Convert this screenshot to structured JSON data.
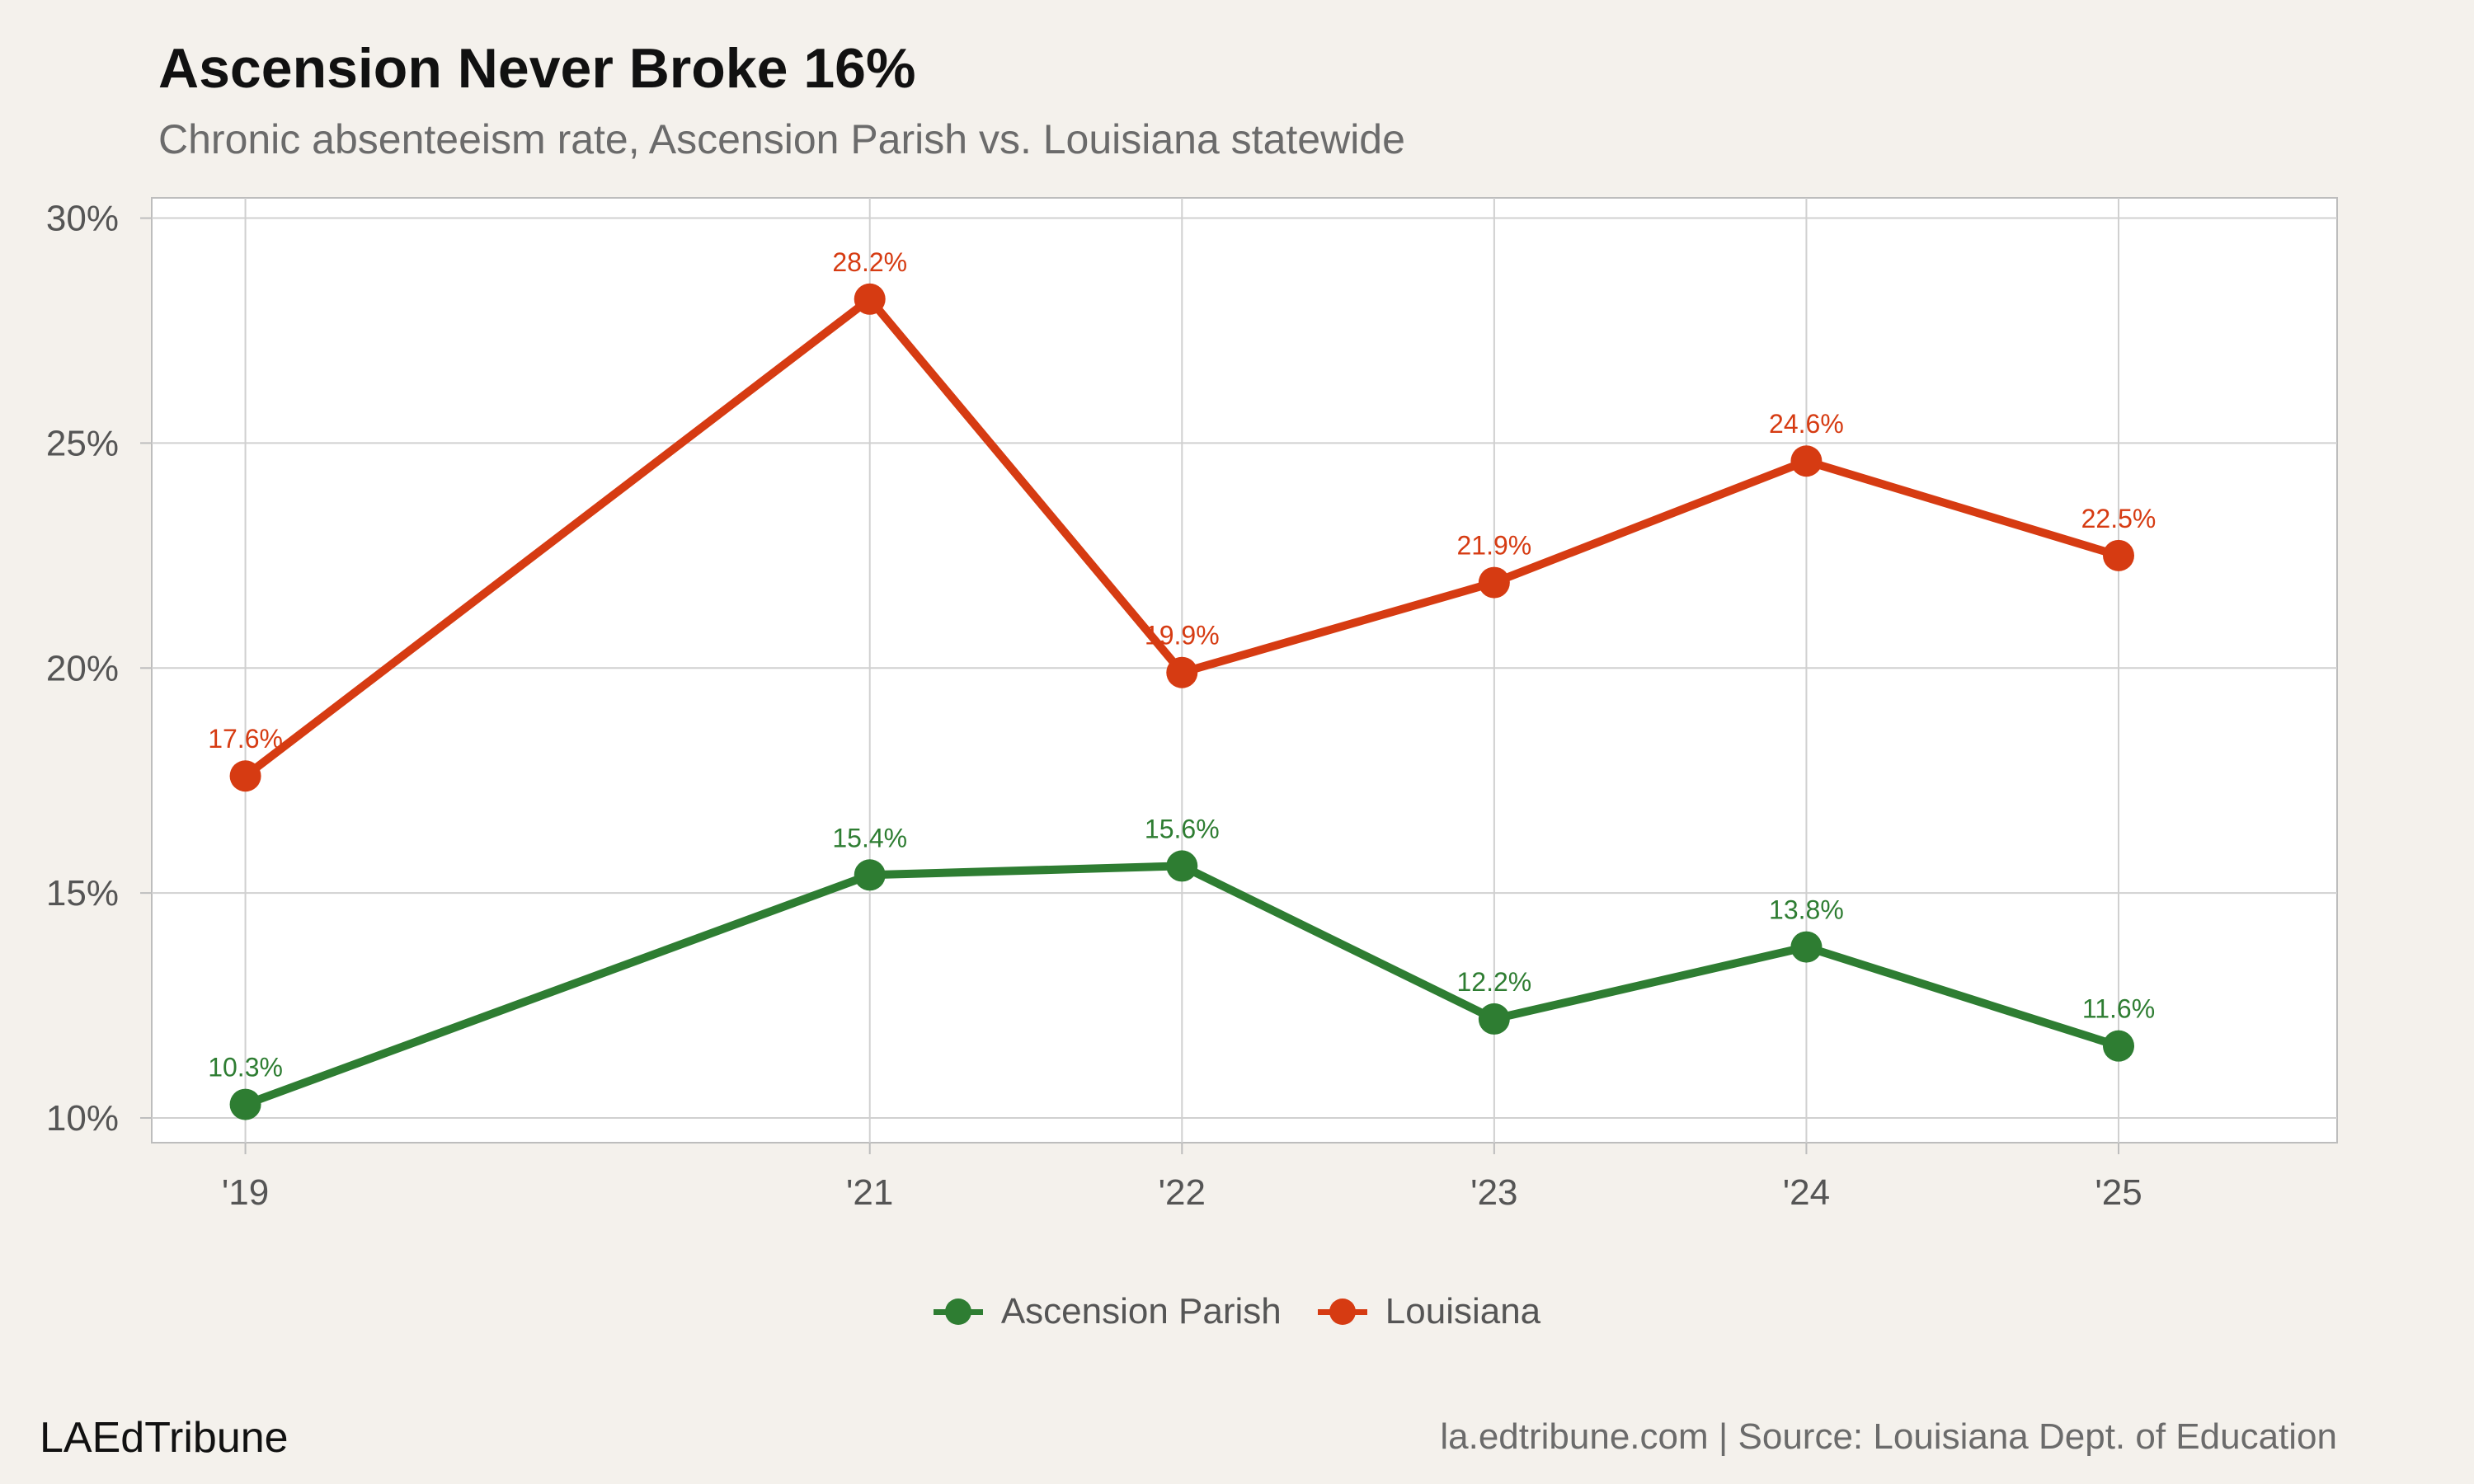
{
  "title": "Ascension Never Broke 16%",
  "subtitle": "Chronic absenteeism rate, Ascension Parish vs. Louisiana statewide",
  "footer": {
    "brand": "LAEdTribune",
    "source": "la.edtribune.com | Source: Louisiana Dept. of Education"
  },
  "chart_data": {
    "type": "line",
    "title": "Ascension Never Broke 16%",
    "subtitle": "Chronic absenteeism rate, Ascension Parish vs. Louisiana statewide",
    "x": [
      2019,
      2021,
      2022,
      2023,
      2024,
      2025
    ],
    "x_tick_labels": [
      "'19",
      "'21",
      "'22",
      "'23",
      "'24",
      "'25"
    ],
    "xlim": [
      2018.7,
      2025.7
    ],
    "ylim": [
      9.45,
      30.45
    ],
    "y_ticks": [
      10,
      15,
      20,
      25,
      30
    ],
    "y_tick_labels": [
      "10%",
      "15%",
      "20%",
      "25%",
      "30%"
    ],
    "xlabel": "",
    "ylabel": "",
    "grid": true,
    "legend_position": "bottom",
    "series": [
      {
        "name": "Ascension Parish",
        "color": "#2e7d32",
        "values": [
          10.3,
          15.4,
          15.6,
          12.2,
          13.8,
          11.6
        ],
        "labels": [
          "10.3%",
          "15.4%",
          "15.6%",
          "12.2%",
          "13.8%",
          "11.6%"
        ]
      },
      {
        "name": "Louisiana",
        "color": "#d63b12",
        "values": [
          17.6,
          28.2,
          19.9,
          21.9,
          24.6,
          22.5
        ],
        "labels": [
          "17.6%",
          "28.2%",
          "19.9%",
          "21.9%",
          "24.6%",
          "22.5%"
        ]
      }
    ]
  }
}
